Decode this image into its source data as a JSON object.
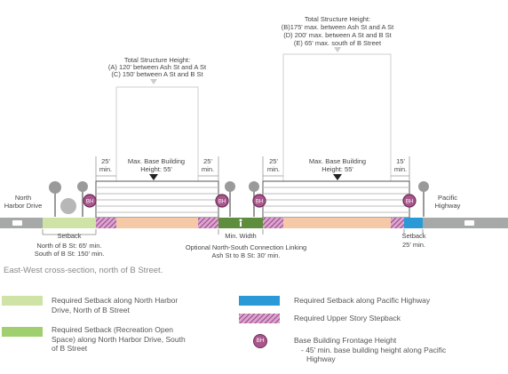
{
  "caption": "East-West cross-section, north of B Street.",
  "left_structure": {
    "height_title": "Total Structure Height:",
    "height_line1": "(A) 120' between Ash St and A St",
    "height_line2": "(C) 150' between A St and B St",
    "setback_left": "25'",
    "setback_left_unit": "min.",
    "setback_right": "25'",
    "setback_right_unit": "min.",
    "base_label1": "Max. Base Building",
    "base_label2": "Height: 55'"
  },
  "right_structure": {
    "height_title": "Total Structure Height:",
    "height_line1": "(B)175' max. between Ash St and A St",
    "height_line2": "(D) 200' max. between A St and B St",
    "height_line3": "(E) 65' max. south of B Street",
    "setback_left": "25'",
    "setback_left_unit": "min.",
    "setback_right": "15'",
    "setback_right_unit": "min.",
    "base_label1": "Max. Base Building",
    "base_label2": "Height: 55'"
  },
  "street_left": {
    "line1": "North",
    "line2": "Harbor Drive"
  },
  "street_right": {
    "line1": "Pacific",
    "line2": "Highway"
  },
  "setback_left_label": "Setback",
  "setback_left_note1": "North of B St: 65' min.",
  "setback_left_note2": "South of B St: 150' min.",
  "min_width_label": "Min. Width",
  "connection_note1": "Optional North-South Connection Linking",
  "connection_note2": "Ash St to B St: 30' min.",
  "setback_right_label": "Setback",
  "setback_right_note": "25' min.",
  "bh_label": "BH",
  "legend": [
    {
      "name": "setback-harbor",
      "color": "#cfe3a6",
      "text": [
        "Required Setback along North Harbor",
        "Drive, North of B Street"
      ]
    },
    {
      "name": "setback-open-space",
      "color": "#9fcf6e",
      "text": [
        "Required Setback (Recreation Open",
        "Space) along North Harbor Drive, South",
        "of B Street"
      ]
    },
    {
      "name": "setback-pacific",
      "color": "#2a9ad6",
      "text": [
        "Required Setback along Pacific Highway"
      ]
    },
    {
      "name": "upper-stepback",
      "color": "#b04a9e",
      "text": [
        "Required Upper Story Stepback"
      ]
    },
    {
      "name": "bh",
      "color": "#a9568c",
      "text": [
        "Base Building Frontage Height",
        "- 45' min. base building height along Pacific",
        "Highway"
      ]
    }
  ],
  "colors": {
    "ground": "#f5c9a8",
    "road": "#a7a9a9",
    "park": "#cfe3a6",
    "pacific": "#2a9ad6",
    "stepback": "#b04a9e",
    "connection": "#5f8d3e",
    "bh": "#a9568c"
  }
}
